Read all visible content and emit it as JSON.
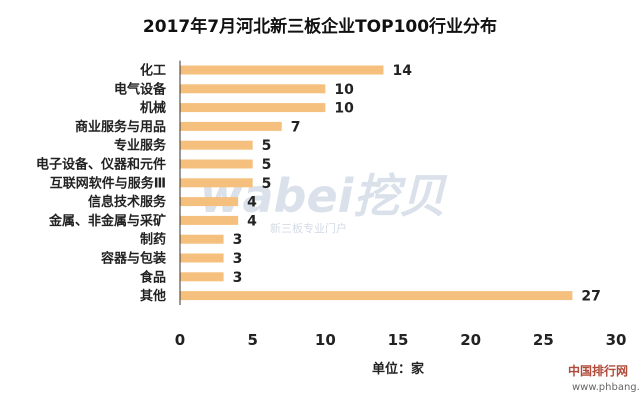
{
  "chart_data": {
    "type": "bar",
    "orientation": "horizontal",
    "title": "2017年7月河北新三板企业TOP100行业分布",
    "categories": [
      "化工",
      "电气设备",
      "机械",
      "商业服务与用品",
      "专业服务",
      "电子设备、仪器和元件",
      "互联网软件与服务Ⅲ",
      "信息技术服务",
      "金属、非金属与采矿",
      "制药",
      "容器与包装",
      "食品",
      "其他"
    ],
    "values": [
      14,
      10,
      10,
      7,
      5,
      5,
      5,
      4,
      4,
      3,
      3,
      3,
      27
    ],
    "xlim": [
      0,
      30
    ],
    "xticks": [
      0,
      5,
      10,
      15,
      20,
      25,
      30
    ],
    "xlabel": "单位：家",
    "ylabel": "",
    "grid": false,
    "bar_color": "#f5c07e"
  },
  "watermark": {
    "logo": "wabei挖贝",
    "sub": "新三板专业门户",
    "corner": "中国排行网",
    "url": "www.phbang.cn"
  }
}
